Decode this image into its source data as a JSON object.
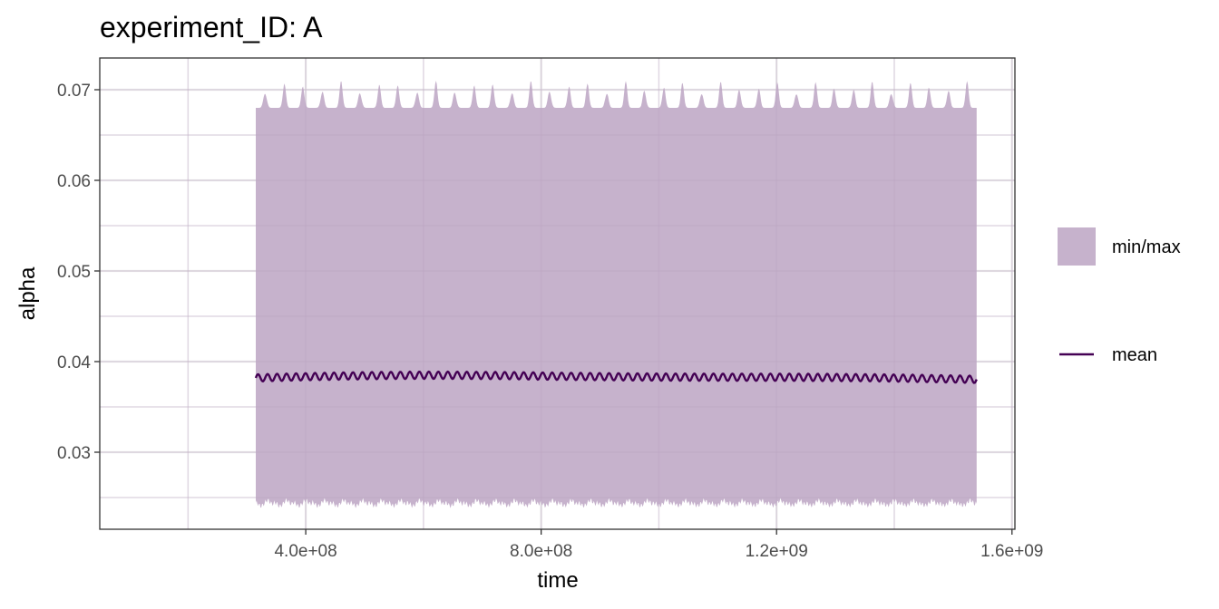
{
  "chart_data": {
    "type": "area",
    "title": "experiment_ID: A",
    "xlabel": "time",
    "ylabel": "alpha",
    "xlim": [
      50000000,
      1605000000
    ],
    "ylim": [
      0.0215,
      0.0735
    ],
    "x_ticks": [
      400000000,
      800000000,
      1200000000,
      1600000000
    ],
    "x_tick_labels": [
      "4.0e+08",
      "8.0e+08",
      "1.2e+09",
      "1.6e+09"
    ],
    "y_ticks": [
      0.03,
      0.04,
      0.05,
      0.06,
      0.07
    ],
    "y_tick_labels": [
      "0.03",
      "0.04",
      "0.05",
      "0.06",
      "0.07"
    ],
    "grid": true,
    "legend_position": "right",
    "series": [
      {
        "name": "min/max",
        "kind": "ribbon",
        "color": "#c6b2cc",
        "x_start": 315000000,
        "x_end": 1540000000,
        "cycles": 38,
        "max_base": 0.068,
        "max_peak": 0.071,
        "min_base": 0.0245,
        "min_dip": 0.024
      },
      {
        "name": "mean",
        "kind": "line",
        "color": "#440154",
        "x_start": 315000000,
        "x_end": 1540000000,
        "mean_value": 0.0382,
        "amplitude": 0.0004,
        "cycles": 76
      }
    ]
  },
  "colors": {
    "panel_border": "#333333",
    "grid_major": "#ebebeb",
    "grid_minor": "#f5f5f5",
    "tick_text": "#4d4d4d"
  }
}
